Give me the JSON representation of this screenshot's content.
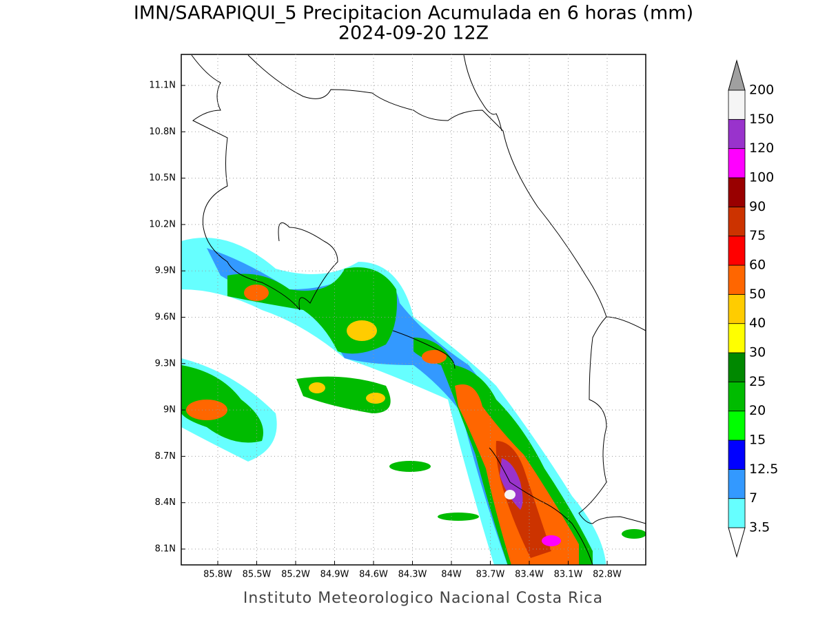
{
  "title": "IMN/SARAPIQUI_5 Precipitacion Acumulada en 6 horas (mm)",
  "subtitle": "2024-09-20 12Z",
  "map": {
    "lon_ticks": [
      "85.8W",
      "85.5W",
      "85.2W",
      "84.9W",
      "84.6W",
      "84.3W",
      "84W",
      "83.7W",
      "83.4W",
      "83.1W",
      "82.8W"
    ],
    "lat_ticks": [
      "11.1N",
      "10.8N",
      "10.5N",
      "10.2N",
      "9.9N",
      "9.6N",
      "9.3N",
      "9N",
      "8.7N",
      "8.4N",
      "8.1N"
    ]
  },
  "colorbar": {
    "levels": [
      "3.5",
      "7",
      "12.5",
      "15",
      "20",
      "25",
      "30",
      "40",
      "50",
      "60",
      "75",
      "90",
      "100",
      "120",
      "150",
      "200"
    ],
    "colors": [
      "#66ffff",
      "#3399ff",
      "#0000ff",
      "#00ff00",
      "#00bb00",
      "#008800",
      "#ffff00",
      "#ffcc00",
      "#ff6600",
      "#ff0000",
      "#cc3300",
      "#990000",
      "#ff00ff",
      "#9933cc",
      "#f5f5f5"
    ],
    "over_color": "#a0a0a0",
    "under_color": "#ffffff"
  },
  "footer": "Instituto Meteorologico Nacional Costa Rica"
}
